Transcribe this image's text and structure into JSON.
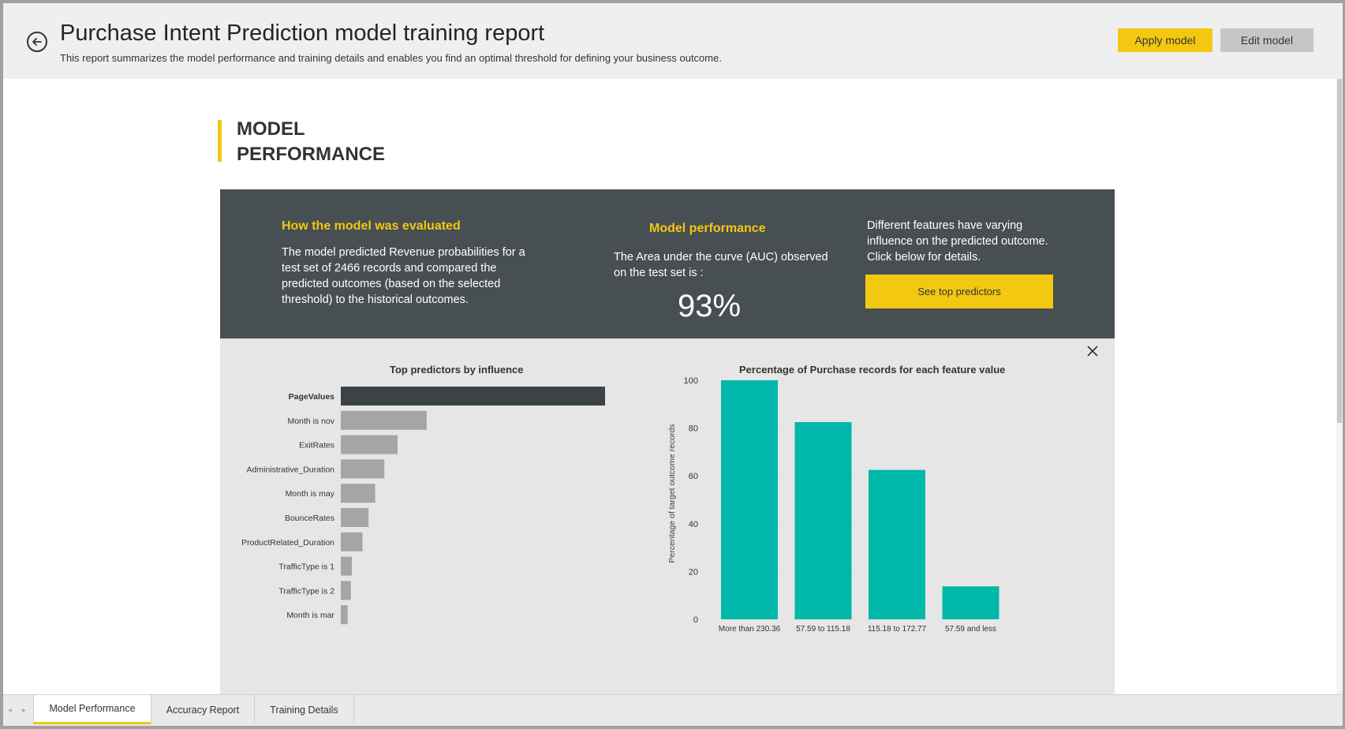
{
  "header": {
    "title": "Purchase Intent Prediction model training report",
    "subtitle": "This report summarizes the model performance and training details and enables you find an optimal threshold for defining your business outcome.",
    "apply_label": "Apply model",
    "edit_label": "Edit model",
    "back_icon": "arrow-left-circle-icon"
  },
  "section": {
    "title": "MODEL PERFORMANCE",
    "accent_color": "#f2c811"
  },
  "summary": {
    "eval_heading": "How the model was evaluated",
    "eval_body": "The model predicted Revenue probabilities for a test set of 2466 records and compared the predicted outcomes (based on the selected threshold) to the historical outcomes.",
    "perf_heading": "Model performance",
    "perf_body": "The Area under the curve (AUC) observed on the test set is :",
    "auc_value": "93%",
    "features_body": "Different features have varying influence on the predicted outcome.  Click below for details.",
    "predictors_button": "See top predictors"
  },
  "colors": {
    "accent": "#f2c811",
    "dark_panel": "#474f52",
    "bar_highlight": "#3b4347",
    "bar_default": "#a5a5a5",
    "teal": "#00b8aa"
  },
  "chart_data": [
    {
      "type": "bar",
      "orientation": "horizontal",
      "title": "Top predictors by influence",
      "categories": [
        "PageValues",
        "Month is nov",
        "ExitRates",
        "Administrative_Duration",
        "Month is may",
        "BounceRates",
        "ProductRelated_Duration",
        "TrafficType is 1",
        "TrafficType is 2",
        "Month is mar"
      ],
      "values": [
        100,
        32.5,
        21.5,
        16.5,
        13,
        10.5,
        8.2,
        4.2,
        3.8,
        2.6
      ],
      "highlighted": "PageValues",
      "xlabel": "",
      "ylabel": ""
    },
    {
      "type": "bar",
      "title": "Percentage of Purchase records for each feature value",
      "categories": [
        "More than 230.36",
        "57.59 to 115.18",
        "115.18 to 172.77",
        "57.59 and less"
      ],
      "values": [
        100,
        82.5,
        62.5,
        13.8
      ],
      "xlabel": "",
      "ylabel": "Percentage of target outcome records",
      "ylim": [
        0,
        100
      ],
      "yticks": [
        0,
        20,
        40,
        60,
        80,
        100
      ],
      "grid": true
    }
  ],
  "tabs": {
    "prev_icon": "◂",
    "next_icon": "▸",
    "items": [
      "Model Performance",
      "Accuracy Report",
      "Training Details"
    ],
    "active": 0
  }
}
